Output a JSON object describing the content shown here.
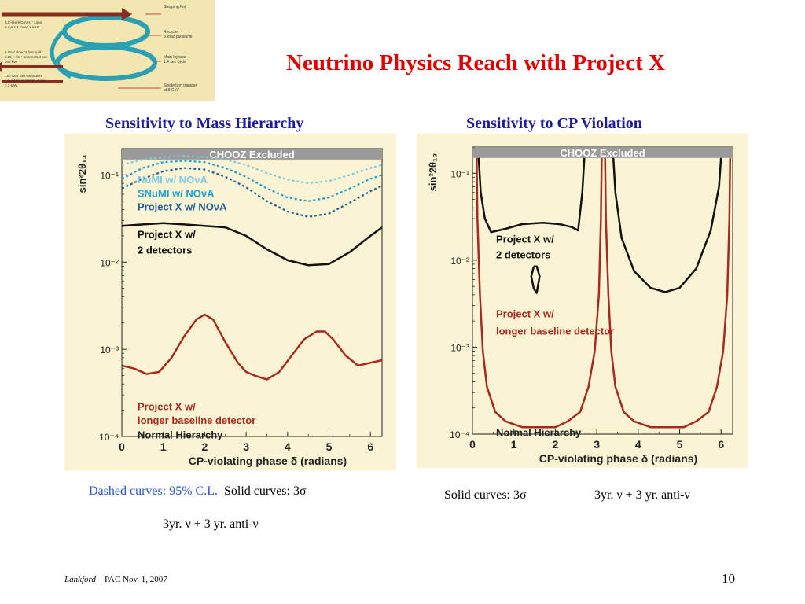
{
  "slide": {
    "title": "Neutrino Physics Reach with Project X",
    "footer_author": "Lankford",
    "footer_rest": " – PAC Nov. 1, 2007",
    "page_number": "10"
  },
  "accelerator_diagram": {
    "labels_right": [
      "Stripping Foil",
      "Recycler",
      "3 linac pulses/fill",
      "Main Injector",
      "1.4 sec cycle",
      "Single turn transfer",
      "at 8 GeV"
    ],
    "labels_left": [
      "ILC-like 8 GeV H⁻ Linac",
      "9 mA × 1 msec × 5 Hz",
      "8 GeV slow or fast spill",
      "2.25 × 10¹⁴ protons/1.4 sec",
      "200 kW",
      "120 GeV fast extraction",
      "1.7 × 10¹⁴ protons/1.4 sec",
      "2.3 MW"
    ]
  },
  "left_panel": {
    "heading": "Sensitivity to Mass Hierarchy",
    "caption_dashed": "Dashed curves: 95% C.L.",
    "caption_solid": "Solid curves: 3σ",
    "caption_exposure": "3yr. ν + 3 yr. anti-ν"
  },
  "right_panel": {
    "heading": "Sensitivity to CP Violation",
    "caption_solid": "Solid curves: 3σ",
    "caption_exposure": "3yr. ν + 3 yr. anti-ν"
  },
  "chart_data": [
    {
      "type": "line",
      "title": "",
      "xlabel": "CP-violating phase δ (radians)",
      "ylabel": "sin²2θ₁₃",
      "xlim": [
        0,
        6.28
      ],
      "ylim": [
        0.0001,
        0.2
      ],
      "yscale": "log",
      "xticks": [
        "0",
        "1",
        "2",
        "3",
        "4",
        "5",
        "6"
      ],
      "yticks": [
        "10⁻¹",
        "10⁻²",
        "10⁻³",
        "10⁻⁴"
      ],
      "excluded_region": {
        "label": "CHOOZ Excluded",
        "ymin": 0.15
      },
      "note": "Normal Hierarchy",
      "colors": {
        "numi": "#7fc9e3",
        "snumi": "#1fa0cf",
        "projx_nova": "#1c5f9a",
        "projx_2det": "#111111",
        "projx_long": "#a82a1e",
        "chooz": "#9a9a9a",
        "background": "#fbf4d4"
      },
      "series": [
        {
          "name": "NuMI w/ NOνA",
          "style": "dashed",
          "color": "#7fc9e3",
          "x": [
            0,
            0.5,
            1.0,
            1.5,
            2.0,
            2.5,
            3.0,
            3.5,
            4.0,
            4.5,
            5.0,
            5.5,
            6.0,
            6.28
          ],
          "y": [
            0.13,
            0.15,
            0.16,
            0.165,
            0.16,
            0.15,
            0.13,
            0.105,
            0.088,
            0.08,
            0.085,
            0.1,
            0.12,
            0.13
          ]
        },
        {
          "name": "SNuMI w/ NOνA",
          "style": "dashed",
          "color": "#1fa0cf",
          "x": [
            0,
            0.5,
            1.0,
            1.5,
            2.0,
            2.5,
            3.0,
            3.5,
            4.0,
            4.5,
            5.0,
            5.5,
            6.0,
            6.28
          ],
          "y": [
            0.09,
            0.12,
            0.14,
            0.145,
            0.14,
            0.12,
            0.095,
            0.07,
            0.055,
            0.05,
            0.055,
            0.07,
            0.09,
            0.1
          ]
        },
        {
          "name": "Project X w/ NOνA",
          "style": "dashed",
          "color": "#1c5f9a",
          "x": [
            0,
            0.5,
            1.0,
            1.5,
            2.0,
            2.5,
            3.0,
            3.5,
            4.0,
            4.5,
            5.0,
            5.5,
            6.0,
            6.28
          ],
          "y": [
            0.07,
            0.09,
            0.11,
            0.12,
            0.115,
            0.095,
            0.072,
            0.05,
            0.038,
            0.033,
            0.036,
            0.048,
            0.065,
            0.075
          ]
        },
        {
          "name": "Project X w/ 2 detectors",
          "style": "solid",
          "color": "#111111",
          "x": [
            0,
            0.5,
            1.0,
            1.5,
            2.0,
            2.5,
            3.0,
            3.5,
            4.0,
            4.5,
            5.0,
            5.5,
            6.0,
            6.28
          ],
          "y": [
            0.026,
            0.027,
            0.028,
            0.027,
            0.026,
            0.025,
            0.02,
            0.014,
            0.0105,
            0.0092,
            0.0095,
            0.013,
            0.02,
            0.025
          ]
        },
        {
          "name": "Project X w/ longer baseline detector",
          "style": "solid",
          "color": "#a82a1e",
          "x": [
            0,
            0.3,
            0.6,
            0.9,
            1.2,
            1.5,
            1.8,
            2.0,
            2.2,
            2.5,
            2.8,
            3.0,
            3.2,
            3.5,
            3.8,
            4.1,
            4.4,
            4.7,
            4.9,
            5.1,
            5.4,
            5.7,
            6.0,
            6.28
          ],
          "y": [
            0.00065,
            0.0006,
            0.00052,
            0.00055,
            0.0008,
            0.0014,
            0.0022,
            0.0025,
            0.0022,
            0.0012,
            0.0007,
            0.00055,
            0.0005,
            0.00045,
            0.00055,
            0.00085,
            0.0013,
            0.0016,
            0.0016,
            0.0013,
            0.00085,
            0.00065,
            0.0007,
            0.00075
          ]
        }
      ]
    },
    {
      "type": "line",
      "title": "",
      "xlabel": "CP-violating phase δ (radians)",
      "ylabel": "sin²2θ₁₃",
      "xlim": [
        0,
        6.28
      ],
      "ylim": [
        0.0001,
        0.2
      ],
      "yscale": "log",
      "xticks": [
        "0",
        "1",
        "2",
        "3",
        "4",
        "5",
        "6"
      ],
      "yticks": [
        "10⁻¹",
        "10⁻²",
        "10⁻³",
        "10⁻⁴"
      ],
      "excluded_region": {
        "label": "CHOOZ Excluded",
        "ymin": 0.15
      },
      "note": "Normal Hierarchy",
      "colors": {
        "projx_2det": "#111111",
        "projx_long": "#a82a1e",
        "chooz": "#9a9a9a",
        "background": "#fbf4d4"
      },
      "series": [
        {
          "name": "Project X w/ 2 detectors",
          "style": "solid",
          "color": "#111111",
          "segments": [
            {
              "x": [
                0.15,
                0.2,
                0.3,
                0.45,
                0.8,
                1.2,
                1.7,
                2.1,
                2.4,
                2.55,
                2.65,
                2.7
              ],
              "y": [
                0.15,
                0.06,
                0.03,
                0.021,
                0.023,
                0.026,
                0.027,
                0.026,
                0.024,
                0.022,
                0.06,
                0.15
              ]
            },
            {
              "x": [
                1.48,
                1.42,
                1.48,
                1.55,
                1.62,
                1.55,
                1.48
              ],
              "y": [
                0.0085,
                0.0065,
                0.0047,
                0.0042,
                0.0065,
                0.0085,
                0.0085
              ]
            },
            {
              "x": [
                3.4,
                3.45,
                3.6,
                3.9,
                4.3,
                4.65,
                5.0,
                5.4,
                5.75,
                5.95,
                6.0
              ],
              "y": [
                0.15,
                0.06,
                0.018,
                0.0075,
                0.0048,
                0.0043,
                0.0048,
                0.008,
                0.022,
                0.07,
                0.15
              ]
            }
          ]
        },
        {
          "name": "Project X w/ longer baseline detector",
          "style": "solid",
          "color": "#a82a1e",
          "segments": [
            {
              "x": [
                0.1,
                0.12,
                0.18,
                0.25,
                0.35,
                0.55,
                0.8,
                1.2,
                1.6,
                2.0,
                2.3,
                2.6,
                2.8,
                2.95,
                3.05,
                3.1,
                3.12
              ],
              "y": [
                0.15,
                0.03,
                0.004,
                0.0009,
                0.00035,
                0.00018,
                0.00014,
                0.00012,
                0.00012,
                0.00012,
                0.00014,
                0.00018,
                0.00035,
                0.0009,
                0.004,
                0.03,
                0.15
              ]
            },
            {
              "x": [
                3.2,
                3.22,
                3.28,
                3.35,
                3.45,
                3.65,
                3.9,
                4.3,
                4.7,
                5.1,
                5.4,
                5.7,
                5.9,
                6.05,
                6.15,
                6.2,
                6.22
              ],
              "y": [
                0.15,
                0.03,
                0.004,
                0.0009,
                0.00035,
                0.00018,
                0.00014,
                0.00012,
                0.00012,
                0.00012,
                0.00014,
                0.00018,
                0.00035,
                0.0009,
                0.004,
                0.03,
                0.15
              ]
            }
          ]
        }
      ]
    }
  ]
}
